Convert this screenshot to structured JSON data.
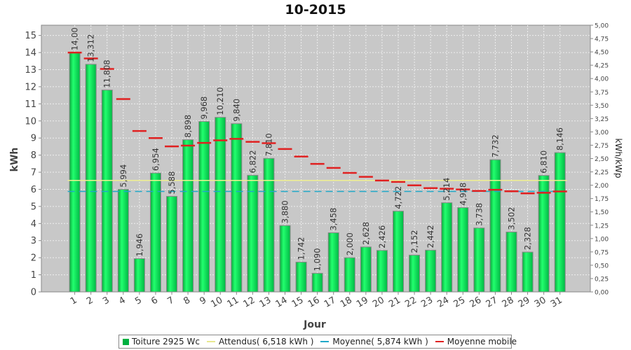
{
  "chart_data": {
    "type": "bar",
    "title": "10-2015",
    "xlabel": "Jour",
    "ylabel": "kWh",
    "y2label": "kWh/kWp",
    "ylim": [
      0,
      15.6
    ],
    "y2lim": [
      0,
      5.0
    ],
    "yticks": [
      "0",
      "1",
      "2",
      "3",
      "4",
      "5",
      "6",
      "7",
      "8",
      "9",
      "10",
      "11",
      "12",
      "13",
      "14",
      "15"
    ],
    "y2ticks": [
      "0,00",
      "0,25",
      "0,50",
      "0,75",
      "1,00",
      "1,25",
      "1,50",
      "1,75",
      "2,00",
      "2,25",
      "2,50",
      "2,75",
      "3,00",
      "3,25",
      "3,50",
      "3,75",
      "4,00",
      "4,25",
      "4,50",
      "4,75",
      "5,00"
    ],
    "categories": [
      "1",
      "2",
      "3",
      "4",
      "5",
      "6",
      "7",
      "8",
      "9",
      "10",
      "11",
      "12",
      "13",
      "14",
      "15",
      "16",
      "17",
      "18",
      "19",
      "20",
      "21",
      "22",
      "23",
      "24",
      "25",
      "26",
      "27",
      "28",
      "29",
      "30",
      "31"
    ],
    "values": [
      14.0,
      13.312,
      11.808,
      5.994,
      1.946,
      6.954,
      5.588,
      8.898,
      9.968,
      10.21,
      9.84,
      6.822,
      7.81,
      3.88,
      1.742,
      1.09,
      3.458,
      2.0,
      2.628,
      2.426,
      4.722,
      2.152,
      2.442,
      5.214,
      4.928,
      3.738,
      7.732,
      3.502,
      2.328,
      6.81,
      8.146
    ],
    "value_labels": [
      "14,00",
      "13,312",
      "11,808",
      "5,994",
      "1,946",
      "6,954",
      "5,588",
      "8,898",
      "9,968",
      "10,210",
      "9,840",
      "6,822",
      "7,810",
      "3,880",
      "1,742",
      "1,090",
      "3,458",
      "2,000",
      "2,628",
      "2,426",
      "4,722",
      "2,152",
      "2,442",
      "5,214",
      "4,928",
      "3,738",
      "7,732",
      "3,502",
      "2,328",
      "6,810",
      "8,146"
    ],
    "moving_average": [
      14.0,
      13.656,
      13.04,
      11.279,
      9.412,
      8.996,
      8.509,
      8.558,
      8.715,
      8.865,
      8.954,
      8.776,
      8.702,
      8.358,
      7.917,
      7.49,
      7.253,
      6.961,
      6.732,
      6.517,
      6.431,
      6.236,
      6.071,
      6.035,
      5.991,
      5.904,
      5.971,
      5.885,
      5.763,
      5.798,
      5.874
    ],
    "expected": 6.518,
    "average": 5.874,
    "series": [
      {
        "name": "Toiture 2925 Wc",
        "color": "#00c040"
      },
      {
        "name": "Attendus( 6,518 kWh )",
        "color": "#e8e890"
      },
      {
        "name": "Moyenne( 5,874 kWh )",
        "color": "#20a8c8"
      },
      {
        "name": "Moyenne mobile",
        "color": "#e02020"
      }
    ],
    "grid": true,
    "legend_position": "bottom"
  }
}
